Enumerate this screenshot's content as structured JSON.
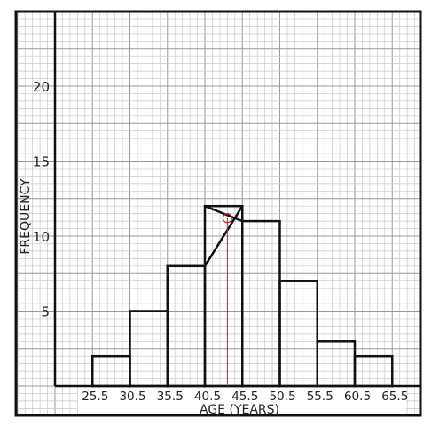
{
  "chart_data": {
    "type": "bar",
    "title": "",
    "xlabel": "AGE (YEARS)",
    "ylabel": "FREQUENCY",
    "x_ticks": [
      "25.5",
      "30.5",
      "35.5",
      "40.5",
      "45.5",
      "50.5",
      "55.5",
      "60.5",
      "65.5"
    ],
    "y_ticks": [
      5,
      10,
      15,
      20
    ],
    "xlim": [
      20.5,
      70.5
    ],
    "ylim": [
      0,
      25
    ],
    "bins": [
      {
        "from": 25.5,
        "to": 30.5,
        "value": 2
      },
      {
        "from": 30.5,
        "to": 35.5,
        "value": 5
      },
      {
        "from": 35.5,
        "to": 40.5,
        "value": 8
      },
      {
        "from": 40.5,
        "to": 45.5,
        "value": 12
      },
      {
        "from": 45.5,
        "to": 50.5,
        "value": 11
      },
      {
        "from": 50.5,
        "to": 55.5,
        "value": 7
      },
      {
        "from": 55.5,
        "to": 60.5,
        "value": 3
      },
      {
        "from": 60.5,
        "to": 65.5,
        "value": 2
      }
    ],
    "mode_construction": {
      "x": 43.5,
      "y": 11.2,
      "color": "#cc2222"
    },
    "grid": true,
    "colors": {
      "bars": "#111111",
      "grid_minor": "#c8c8c8",
      "grid_major": "#9a9a9a",
      "mode_line": "#cc2222"
    }
  }
}
